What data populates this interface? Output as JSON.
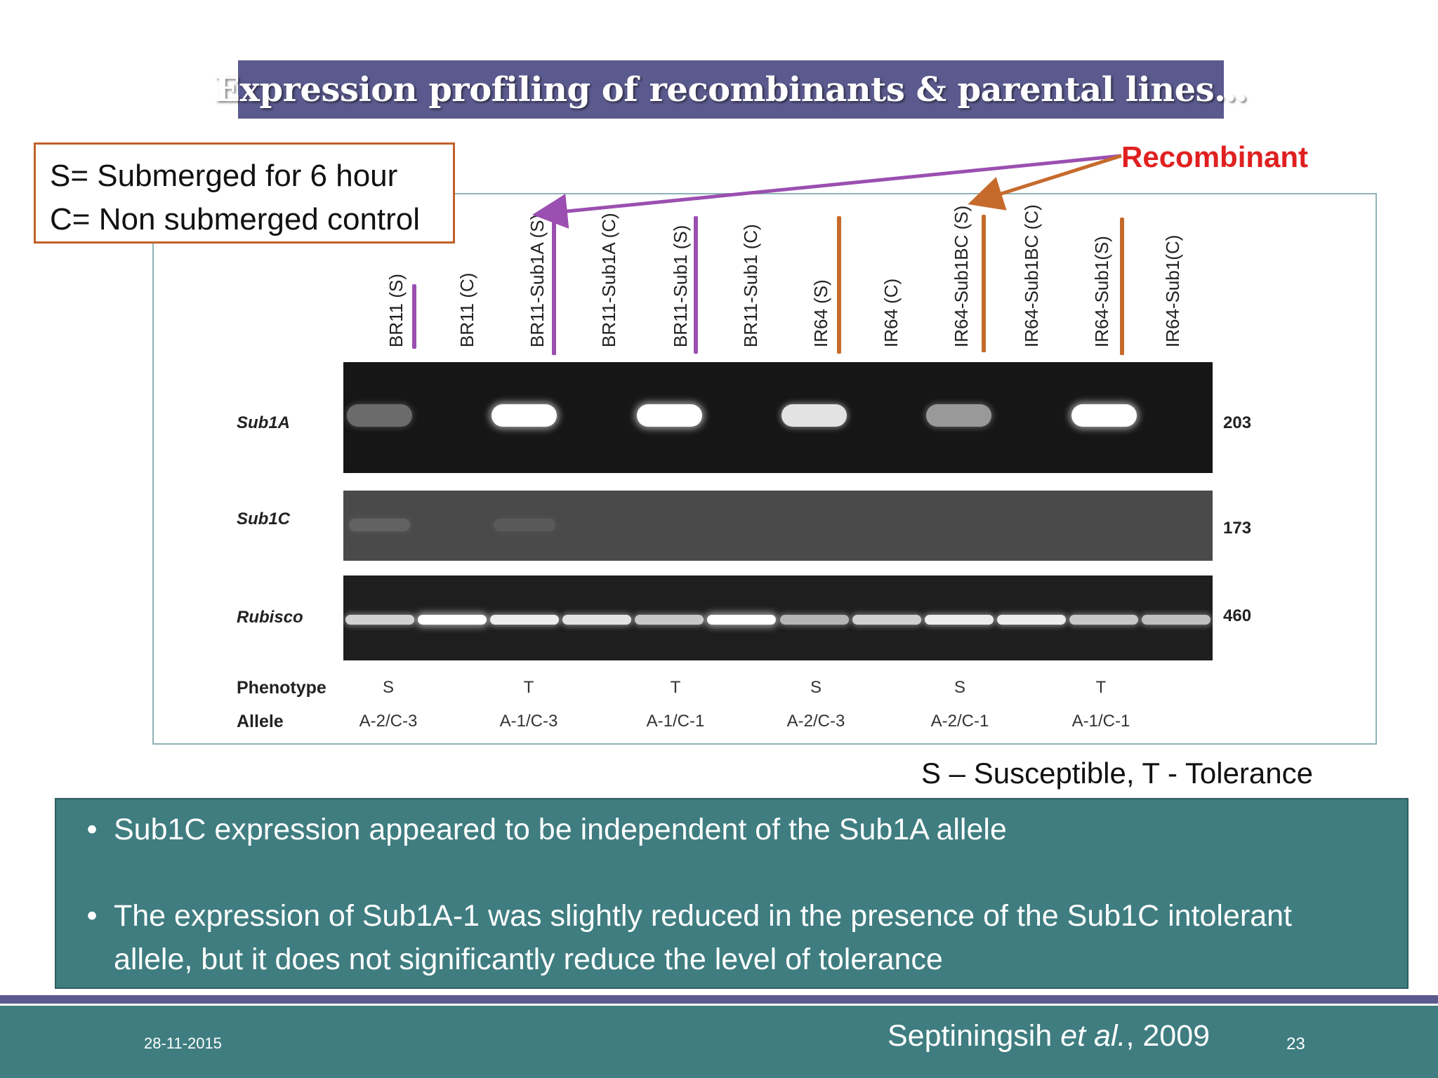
{
  "slide": {
    "title": "Expression profiling of recombinants & parental lines…",
    "legend": {
      "line1": "S= Submerged for 6 hour",
      "line2": "C= Non submerged control"
    },
    "recombinant_label": "Recombinant",
    "key_note": "S – Susceptible, T - Tolerance",
    "bullets": [
      "Sub1C expression appeared to be independent of the Sub1A allele",
      "The expression of Sub1A-1 was slightly reduced in the presence of the Sub1C intolerant allele, but it does not significantly reduce the level of tolerance"
    ],
    "footer": {
      "date": "28-11-2015",
      "citation_author": "Septiningsih",
      "citation_etal": "et al.",
      "citation_year": ", 2009",
      "page_number": "23"
    }
  },
  "gel_figure": {
    "lanes": [
      "BR11 (S)",
      "BR11 (C)",
      "BR11-Sub1A (S)",
      "BR11-Sub1A (C)",
      "BR11-Sub1 (S)",
      "BR11-Sub1 (C)",
      "IR64 (S)",
      "IR64 (C)",
      "IR64-Sub1BC (S)",
      "IR64-Sub1BC (C)",
      "IR64-Sub1(S)",
      "IR64-Sub1(C)"
    ],
    "genes": [
      {
        "name": "Sub1A",
        "size": "203"
      },
      {
        "name": "Sub1C",
        "size": "173"
      },
      {
        "name": "Rubisco",
        "size": "460"
      }
    ],
    "phenotype_label": "Phenotype",
    "allele_label": "Allele",
    "phenotypes": [
      "S",
      "T",
      "T",
      "S",
      "S",
      "T"
    ],
    "alleles": [
      "A-2/C-3",
      "A-1/C-3",
      "A-1/C-1",
      "A-2/C-3",
      "A-2/C-1",
      "A-1/C-1"
    ],
    "band_intensity": {
      "sub1a": [
        0.2,
        0,
        1.0,
        0,
        1.0,
        0,
        0.85,
        0,
        0.45,
        0,
        1.0,
        0
      ],
      "sub1c": [
        0.15,
        0,
        0.1,
        0,
        0,
        0,
        0,
        0,
        0,
        0,
        0,
        0
      ],
      "rubisco": [
        0.75,
        0.95,
        0.9,
        0.85,
        0.7,
        0.95,
        0.6,
        0.75,
        0.9,
        0.9,
        0.7,
        0.65
      ]
    },
    "colors": {
      "purple_marker": "#9b4fb0",
      "orange_marker": "#c66a2c"
    }
  }
}
